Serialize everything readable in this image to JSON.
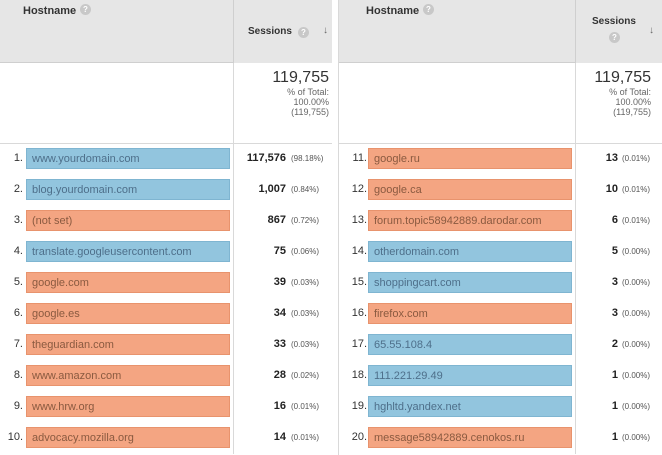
{
  "left_table": {
    "host_header": "Hostname",
    "sessions_header": "Sessions",
    "summary": {
      "total": "119,755",
      "pct_label": "% of Total:",
      "pct_value": "100.00%",
      "pct_total": "(119,755)"
    },
    "rows": [
      {
        "rank": "1.",
        "hostname": "www.yourdomain.com",
        "sessions": "117,576",
        "pct": "(98.18%)",
        "color": "blue"
      },
      {
        "rank": "2.",
        "hostname": "blog.yourdomain.com",
        "sessions": "1,007",
        "pct": "(0.84%)",
        "color": "blue"
      },
      {
        "rank": "3.",
        "hostname": "(not set)",
        "sessions": "867",
        "pct": "(0.72%)",
        "color": "orange"
      },
      {
        "rank": "4.",
        "hostname": "translate.googleusercontent.com",
        "sessions": "75",
        "pct": "(0.06%)",
        "color": "blue"
      },
      {
        "rank": "5.",
        "hostname": "google.com",
        "sessions": "39",
        "pct": "(0.03%)",
        "color": "orange"
      },
      {
        "rank": "6.",
        "hostname": "google.es",
        "sessions": "34",
        "pct": "(0.03%)",
        "color": "orange"
      },
      {
        "rank": "7.",
        "hostname": "theguardian.com",
        "sessions": "33",
        "pct": "(0.03%)",
        "color": "orange"
      },
      {
        "rank": "8.",
        "hostname": "www.amazon.com",
        "sessions": "28",
        "pct": "(0.02%)",
        "color": "orange"
      },
      {
        "rank": "9.",
        "hostname": "www.hrw.org",
        "sessions": "16",
        "pct": "(0.01%)",
        "color": "orange"
      },
      {
        "rank": "10.",
        "hostname": "advocacy.mozilla.org",
        "sessions": "14",
        "pct": "(0.01%)",
        "color": "orange"
      }
    ]
  },
  "right_table": {
    "host_header": "Hostname",
    "sessions_header": "Sessions",
    "summary": {
      "total": "119,755",
      "pct_label": "% of Total:",
      "pct_value": "100.00%",
      "pct_total": "(119,755)"
    },
    "rows": [
      {
        "rank": "11.",
        "hostname": "google.ru",
        "sessions": "13",
        "pct": "(0.01%)",
        "color": "orange"
      },
      {
        "rank": "12.",
        "hostname": "google.ca",
        "sessions": "10",
        "pct": "(0.01%)",
        "color": "orange"
      },
      {
        "rank": "13.",
        "hostname": "forum.topic58942889.darodar.com",
        "sessions": "6",
        "pct": "(0.01%)",
        "color": "orange"
      },
      {
        "rank": "14.",
        "hostname": "otherdomain.com",
        "sessions": "5",
        "pct": "(0.00%)",
        "color": "blue"
      },
      {
        "rank": "15.",
        "hostname": "shoppingcart.com",
        "sessions": "3",
        "pct": "(0.00%)",
        "color": "blue"
      },
      {
        "rank": "16.",
        "hostname": "firefox.com",
        "sessions": "3",
        "pct": "(0.00%)",
        "color": "orange"
      },
      {
        "rank": "17.",
        "hostname": "65.55.108.4",
        "sessions": "2",
        "pct": "(0.00%)",
        "color": "blue"
      },
      {
        "rank": "18.",
        "hostname": "111.221.29.49",
        "sessions": "1",
        "pct": "(0.00%)",
        "color": "blue"
      },
      {
        "rank": "19.",
        "hostname": "hghltd.yandex.net",
        "sessions": "1",
        "pct": "(0.00%)",
        "color": "blue"
      },
      {
        "rank": "20.",
        "hostname": "message58942889.cenokos.ru",
        "sessions": "1",
        "pct": "(0.00%)",
        "color": "orange"
      }
    ]
  },
  "icons": {
    "help": "help-icon",
    "sort": "sort-descending-icon"
  },
  "colors": {
    "blue": "#92c5de",
    "orange": "#f4a582",
    "header_bg": "#e6e6e6"
  }
}
